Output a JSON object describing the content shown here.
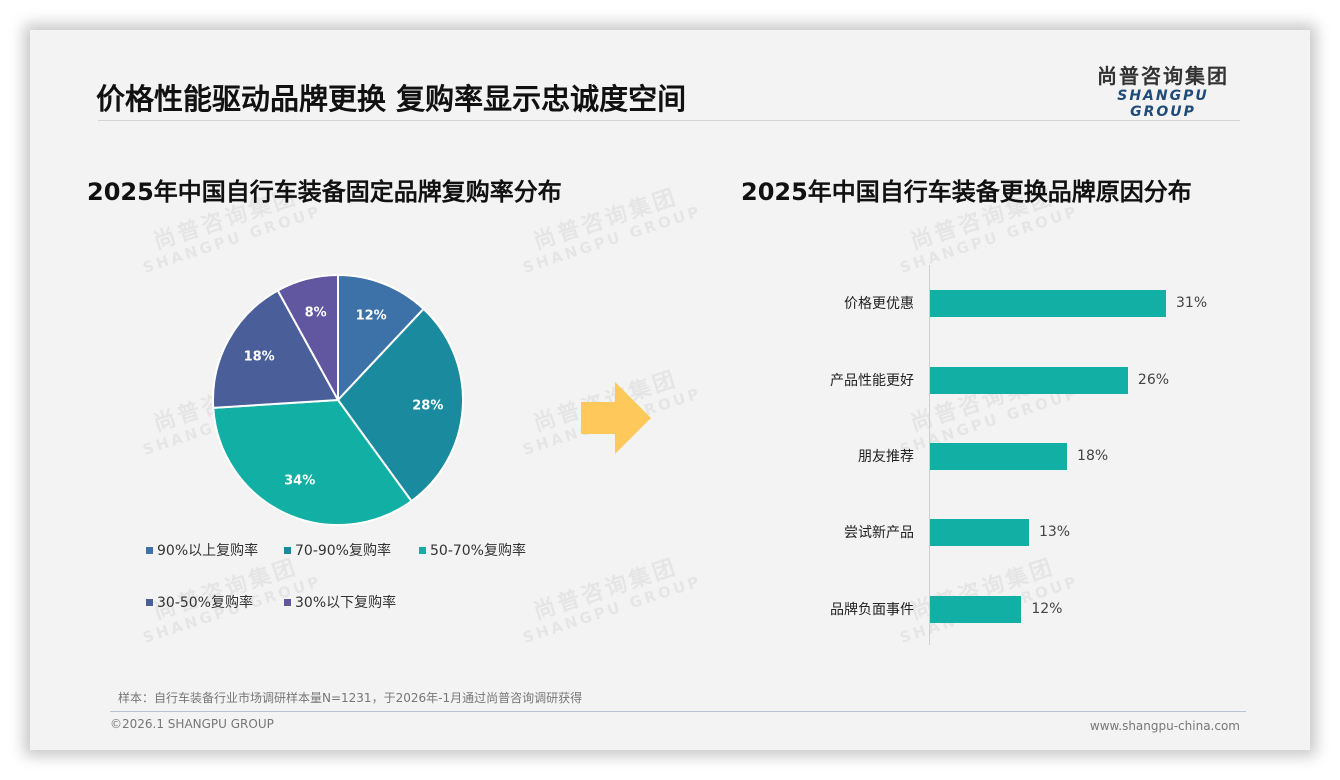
{
  "header": {
    "title": "价格性能驱动品牌更换 复购率显示忠诚度空间",
    "logo_cn": "尚普咨询集团",
    "logo_en": "SHANGPU GROUP"
  },
  "watermark": {
    "cn": "尚普咨询集团",
    "en": "SHANGPU GROUP"
  },
  "left_chart": {
    "title": "2025年中国自行车装备固定品牌复购率分布"
  },
  "right_chart": {
    "title": "2025年中国自行车装备更换品牌原因分布"
  },
  "chart_data": [
    {
      "type": "pie",
      "title": "2025年中国自行车装备固定品牌复购率分布",
      "categories": [
        "90%以上复购率",
        "70-90%复购率",
        "50-70%复购率",
        "30-50%复购率",
        "30%以下复购率"
      ],
      "values": [
        12,
        28,
        34,
        18,
        8
      ],
      "labels": [
        "12%",
        "28%",
        "34%",
        "18%",
        "8%"
      ],
      "colors": [
        "#3d72a8",
        "#1a8a9e",
        "#12afa5",
        "#4a5e9a",
        "#6156a0"
      ],
      "start_angle": "12 o'clock, clockwise",
      "legend_position": "bottom"
    },
    {
      "type": "bar",
      "orientation": "horizontal",
      "title": "2025年中国自行车装备更换品牌原因分布",
      "categories": [
        "价格更优惠",
        "产品性能更好",
        "朋友推荐",
        "尝试新产品",
        "品牌负面事件"
      ],
      "values": [
        31,
        26,
        18,
        13,
        12
      ],
      "labels": [
        "31%",
        "26%",
        "18%",
        "13%",
        "12%"
      ],
      "color": "#12afa5",
      "xlabel": "",
      "ylabel": "",
      "grid": false
    }
  ],
  "arrow": {
    "icon": "right-arrow-icon",
    "color": "#ffc85a"
  },
  "footer": {
    "note": "样本：自行车装备行业市场调研样本量N=1231，于2026年-1月通过尚普咨询调研获得",
    "copyright": "©2026.1 SHANGPU GROUP",
    "website": "www.shangpu-china.com"
  }
}
